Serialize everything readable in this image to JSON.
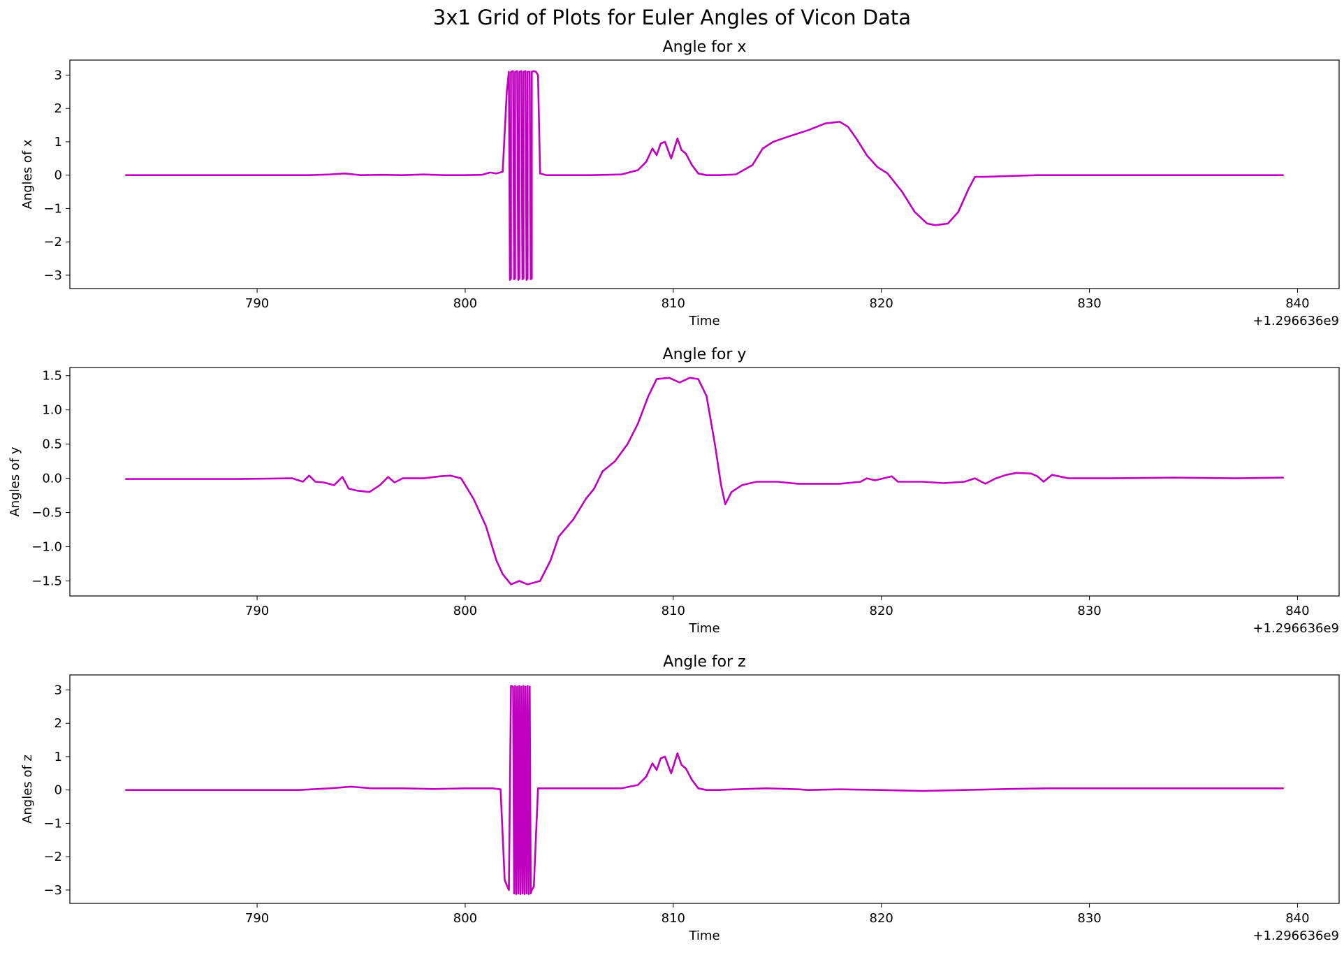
{
  "figure": {
    "suptitle": "3x1 Grid of Plots for Euler Angles of Vicon Data",
    "line_color": "#bf00bf",
    "background": "#ffffff"
  },
  "chart_data": [
    {
      "type": "line",
      "title": "Angle for x",
      "xlabel": "Time",
      "ylabel": "Angles of x",
      "x_offset_label": "+1.296636e9",
      "xlim": [
        781,
        842
      ],
      "ylim": [
        -3.4,
        3.45
      ],
      "xticks": [
        790,
        800,
        810,
        820,
        830,
        840
      ],
      "yticks": [
        -3,
        -2,
        -1,
        0,
        1,
        2,
        3
      ],
      "ytick_labels": [
        "−3",
        "−2",
        "−1",
        "0",
        "1",
        "2",
        "3"
      ],
      "grid": false,
      "series": [
        {
          "x": [
            783.7,
            785,
            787,
            789,
            791,
            792.5,
            793.5,
            794.2,
            795,
            796,
            797,
            798,
            799,
            800,
            800.8,
            801.2,
            801.5,
            801.8,
            802.0,
            802.1,
            802.15,
            802.2,
            802.2,
            802.3,
            802.35,
            802.4,
            802.4,
            802.5,
            802.55,
            802.6,
            802.6,
            802.7,
            802.75,
            802.8,
            802.8,
            802.9,
            802.95,
            803.0,
            803.0,
            803.1,
            803.15,
            803.2,
            803.2,
            803.3,
            803.4,
            803.45,
            803.5,
            803.6,
            803.9,
            804.5,
            806,
            807.5,
            808.3,
            808.7,
            809.0,
            809.2,
            809.4,
            809.6,
            809.9,
            810.2,
            810.4,
            810.6,
            810.9,
            811.2,
            811.6,
            812.2,
            813,
            813.8,
            814.3,
            814.8,
            815.5,
            816.5,
            817.3,
            818.0,
            818.4,
            818.8,
            819.3,
            819.8,
            820.3,
            821.0,
            821.6,
            822.2,
            822.6,
            823.2,
            823.7,
            824.2,
            824.5,
            825,
            826,
            827.5,
            829,
            832,
            835,
            838,
            839.3
          ],
          "y": [
            0.0,
            0.0,
            0.0,
            0.0,
            0.0,
            0.0,
            0.02,
            0.05,
            0.0,
            0.01,
            0.0,
            0.02,
            0.0,
            0.0,
            0.01,
            0.08,
            0.05,
            0.1,
            2.5,
            3.1,
            -3.14,
            -3.1,
            3.1,
            3.12,
            -3.12,
            -3.1,
            3.1,
            3.12,
            -3.14,
            -3.1,
            3.1,
            3.12,
            -3.12,
            -3.1,
            3.1,
            3.12,
            -3.14,
            -3.1,
            3.1,
            3.1,
            -3.12,
            -3.1,
            3.1,
            3.12,
            3.1,
            3.05,
            3.0,
            0.05,
            0.0,
            0.0,
            0.0,
            0.02,
            0.15,
            0.4,
            0.8,
            0.6,
            0.95,
            1.0,
            0.5,
            1.1,
            0.75,
            0.65,
            0.3,
            0.05,
            0.0,
            0.0,
            0.02,
            0.3,
            0.8,
            1.0,
            1.15,
            1.35,
            1.55,
            1.6,
            1.45,
            1.1,
            0.6,
            0.25,
            0.05,
            -0.5,
            -1.1,
            -1.45,
            -1.5,
            -1.45,
            -1.1,
            -0.4,
            -0.05,
            -0.05,
            -0.03,
            0.0,
            0.0,
            0.0,
            0.0,
            0.0,
            0.0
          ]
        }
      ]
    },
    {
      "type": "line",
      "title": "Angle for y",
      "xlabel": "Time",
      "ylabel": "Angles of y",
      "x_offset_label": "+1.296636e9",
      "xlim": [
        781,
        842
      ],
      "ylim": [
        -1.72,
        1.62
      ],
      "xticks": [
        790,
        800,
        810,
        820,
        830,
        840
      ],
      "yticks": [
        -1.5,
        -1.0,
        -0.5,
        0.0,
        0.5,
        1.0,
        1.5
      ],
      "ytick_labels": [
        "−1.5",
        "−1.0",
        "−0.5",
        "0.0",
        "0.5",
        "1.0",
        "1.5"
      ],
      "grid": false,
      "series": [
        {
          "x": [
            783.7,
            786,
            789,
            791.7,
            792.2,
            792.5,
            792.8,
            793.2,
            793.7,
            794.1,
            794.4,
            794.8,
            795.4,
            795.9,
            796.3,
            796.6,
            797,
            798,
            798.8,
            799.3,
            799.8,
            800.4,
            801.0,
            801.5,
            801.8,
            802.2,
            802.6,
            803.0,
            803.6,
            804.1,
            804.5,
            805.2,
            805.8,
            806.2,
            806.6,
            807.2,
            807.8,
            808.3,
            808.8,
            809.2,
            809.8,
            810.3,
            810.8,
            811.2,
            811.6,
            812.0,
            812.3,
            812.5,
            812.8,
            813.3,
            814,
            815,
            816,
            817,
            818,
            819,
            819.3,
            819.7,
            820.5,
            820.8,
            821.3,
            822,
            823,
            824,
            824.5,
            825,
            825.5,
            826,
            826.5,
            827.2,
            827.5,
            827.8,
            828.2,
            829,
            831,
            834,
            837,
            839.3
          ],
          "y": [
            -0.01,
            -0.01,
            -0.01,
            0.0,
            -0.05,
            0.04,
            -0.05,
            -0.06,
            -0.1,
            0.02,
            -0.15,
            -0.18,
            -0.2,
            -0.1,
            0.02,
            -0.06,
            0.0,
            0.0,
            0.03,
            0.04,
            0.0,
            -0.3,
            -0.7,
            -1.2,
            -1.4,
            -1.55,
            -1.5,
            -1.55,
            -1.5,
            -1.2,
            -0.85,
            -0.6,
            -0.3,
            -0.15,
            0.1,
            0.25,
            0.5,
            0.8,
            1.2,
            1.45,
            1.47,
            1.4,
            1.47,
            1.45,
            1.2,
            0.5,
            -0.1,
            -0.38,
            -0.2,
            -0.1,
            -0.05,
            -0.05,
            -0.08,
            -0.08,
            -0.08,
            -0.05,
            0.0,
            -0.03,
            0.03,
            -0.05,
            -0.05,
            -0.05,
            -0.07,
            -0.05,
            0.0,
            -0.08,
            0.0,
            0.05,
            0.08,
            0.07,
            0.03,
            -0.05,
            0.05,
            0.0,
            0.0,
            0.01,
            0.0,
            0.01
          ]
        }
      ]
    },
    {
      "type": "line",
      "title": "Angle for z",
      "xlabel": "Time",
      "ylabel": "Angles of z",
      "x_offset_label": "+1.296636e9",
      "xlim": [
        781,
        842
      ],
      "ylim": [
        -3.4,
        3.45
      ],
      "xticks": [
        790,
        800,
        810,
        820,
        830,
        840
      ],
      "yticks": [
        -3,
        -2,
        -1,
        0,
        1,
        2,
        3
      ],
      "ytick_labels": [
        "−3",
        "−2",
        "−1",
        "0",
        "1",
        "2",
        "3"
      ],
      "grid": false,
      "series": [
        {
          "x": [
            783.7,
            786,
            789,
            792,
            793.5,
            794.5,
            795.5,
            797,
            798.5,
            800,
            801.3,
            801.7,
            801.9,
            802.1,
            802.2,
            802.3,
            802.35,
            802.4,
            802.45,
            802.5,
            802.55,
            802.6,
            802.65,
            802.7,
            802.75,
            802.8,
            802.85,
            802.9,
            802.95,
            803.0,
            803.05,
            803.1,
            803.15,
            803.2,
            803.3,
            803.5,
            803.8,
            804.5,
            806,
            807.5,
            808.3,
            808.7,
            809.0,
            809.2,
            809.4,
            809.6,
            809.9,
            810.2,
            810.4,
            810.6,
            810.9,
            811.2,
            811.6,
            812.2,
            813,
            814.5,
            816,
            816.5,
            818,
            820,
            822,
            824,
            826,
            828,
            831,
            835,
            839.3
          ],
          "y": [
            0.0,
            0.0,
            0.0,
            0.0,
            0.05,
            0.1,
            0.05,
            0.05,
            0.03,
            0.05,
            0.05,
            0.02,
            -2.7,
            -3.0,
            3.12,
            3.1,
            -3.1,
            3.12,
            -3.12,
            3.1,
            -3.1,
            3.12,
            -3.12,
            3.1,
            -3.1,
            3.12,
            -3.12,
            3.1,
            -3.1,
            3.12,
            -3.12,
            3.1,
            -3.1,
            -3.0,
            -2.9,
            0.05,
            0.05,
            0.05,
            0.05,
            0.05,
            0.15,
            0.4,
            0.8,
            0.6,
            0.95,
            1.0,
            0.5,
            1.1,
            0.75,
            0.65,
            0.3,
            0.05,
            0.0,
            0.0,
            0.02,
            0.05,
            0.02,
            0.0,
            0.02,
            0.0,
            -0.03,
            0.0,
            0.03,
            0.05,
            0.05,
            0.05,
            0.05
          ]
        }
      ]
    }
  ]
}
